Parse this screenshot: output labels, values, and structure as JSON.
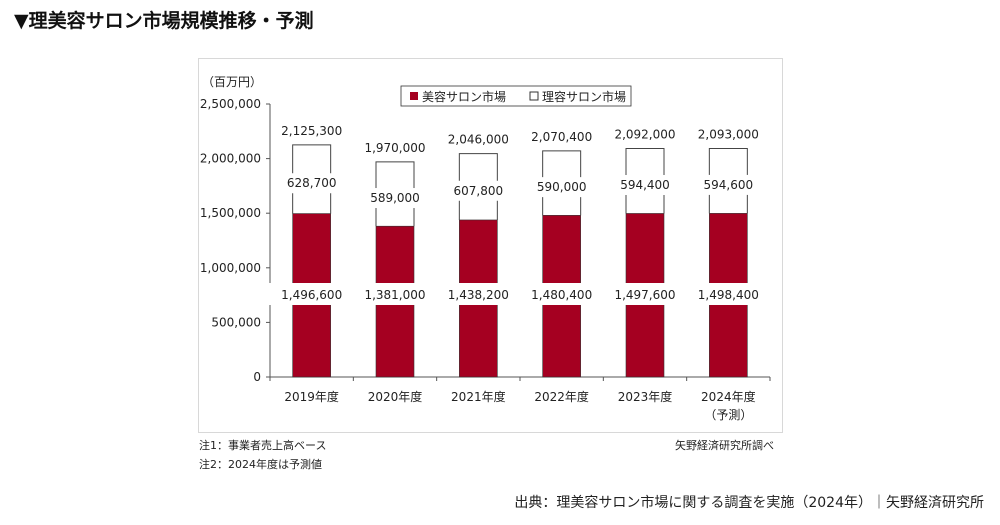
{
  "title": "▼理美容サロン市場規模推移・予測",
  "chart_data": {
    "type": "bar",
    "stacked": true,
    "unit_label": "（百万円）",
    "categories": [
      "2019年度",
      "2020年度",
      "2021年度",
      "2022年度",
      "2023年度",
      "2024年度"
    ],
    "category_sublabels": [
      "",
      "",
      "",
      "",
      "",
      "（予測）"
    ],
    "series": [
      {
        "name": "美容サロン市場",
        "color": "#a50021",
        "values": [
          1496600,
          1381000,
          1438200,
          1480400,
          1497600,
          1498400
        ],
        "labels": [
          "1,496,600",
          "1,381,000",
          "1,438,200",
          "1,480,400",
          "1,497,600",
          "1,498,400"
        ]
      },
      {
        "name": "理容サロン市場",
        "color": "#ffffff",
        "values": [
          628700,
          589000,
          607800,
          590000,
          594400,
          594600
        ],
        "labels": [
          "628,700",
          "589,000",
          "607,800",
          "590,000",
          "594,400",
          "594,600"
        ]
      }
    ],
    "totals": [
      2125300,
      1970000,
      2046000,
      2070400,
      2092000,
      2093000
    ],
    "total_labels": [
      "2,125,300",
      "1,970,000",
      "2,046,000",
      "2,070,400",
      "2,092,000",
      "2,093,000"
    ],
    "ylim": [
      0,
      2500000
    ],
    "yticks": [
      0,
      500000,
      1000000,
      1500000,
      2000000,
      2500000
    ],
    "ytick_labels": [
      "0",
      "500,000",
      "1,000,000",
      "1,500,000",
      "2,000,000",
      "2,500,000"
    ],
    "legend_placement": "top-center"
  },
  "notes": [
    "注1：事業者売上高ベース",
    "注2：2024年度は予測値"
  ],
  "credit": "矢野経済研究所調べ",
  "source": "出典：理美容サロン市場に関する調査を実施（2024年）｜矢野経済研究所"
}
